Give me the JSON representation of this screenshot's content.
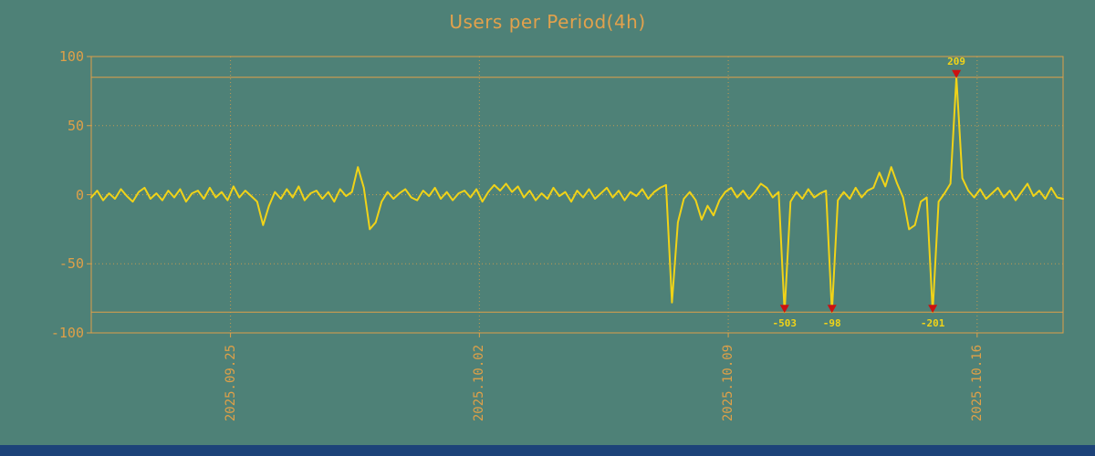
{
  "page": {
    "background": "#4e8177",
    "footer_color": "#1d4379"
  },
  "chart_data": {
    "type": "line",
    "title": "Users per Period(4h)",
    "title_color": "#e2a14c",
    "axis_color": "#dfa048",
    "line_color": "#f0d318",
    "marker_color": "#cc1111",
    "annotation_text_color": "#f0d318",
    "ylabel": "",
    "xlabel": "",
    "ylim": [
      -100,
      100
    ],
    "y_ticks": [
      100,
      50,
      0,
      -50,
      -100
    ],
    "y_gridlines": [
      50,
      0,
      -50
    ],
    "clip": 85,
    "x_ticks": [
      {
        "label": "2025.09.25",
        "index": 23.5
      },
      {
        "label": "2025.10.02",
        "index": 65.5
      },
      {
        "label": "2025.10.09",
        "index": 107.5
      },
      {
        "label": "2025.10.16",
        "index": 149.5
      }
    ],
    "values": [
      -2,
      3,
      -4,
      1,
      -3,
      4,
      -1,
      -5,
      2,
      5,
      -3,
      1,
      -4,
      3,
      -2,
      4,
      -5,
      1,
      3,
      -3,
      5,
      -2,
      2,
      -4,
      6,
      -2,
      3,
      -1,
      -5,
      -22,
      -8,
      2,
      -3,
      4,
      -2,
      6,
      -4,
      1,
      3,
      -3,
      2,
      -5,
      4,
      -1,
      2,
      20,
      5,
      -25,
      -20,
      -5,
      2,
      -3,
      1,
      4,
      -2,
      -4,
      3,
      -1,
      5,
      -3,
      2,
      -4,
      1,
      3,
      -2,
      4,
      -5,
      2,
      7,
      3,
      8,
      2,
      6,
      -2,
      3,
      -4,
      1,
      -3,
      5,
      -1,
      2,
      -5,
      3,
      -2,
      4,
      -3,
      1,
      5,
      -2,
      3,
      -4,
      2,
      -1,
      4,
      -3,
      2,
      5,
      7,
      -78,
      -20,
      -3,
      2,
      -4,
      -18,
      -8,
      -15,
      -4,
      2,
      5,
      -2,
      3,
      -3,
      2,
      8,
      5,
      -2,
      2,
      -503,
      -5,
      2,
      -3,
      4,
      -2,
      1,
      3,
      -98,
      -4,
      2,
      -3,
      5,
      -2,
      3,
      5,
      16,
      6,
      20,
      8,
      -2,
      -25,
      -22,
      -5,
      -2,
      -201,
      -5,
      1,
      8,
      209,
      12,
      3,
      -2,
      4,
      -3,
      1,
      5,
      -2,
      3,
      -4,
      2,
      8,
      -1,
      3,
      -3,
      5,
      -2,
      -3
    ],
    "annotations": [
      {
        "index": 117,
        "value": -503,
        "label": "-503"
      },
      {
        "index": 125,
        "value": -98,
        "label": "-98"
      },
      {
        "index": 142,
        "value": -201,
        "label": "-201"
      },
      {
        "index": 146,
        "value": 209,
        "label": "209"
      }
    ]
  }
}
